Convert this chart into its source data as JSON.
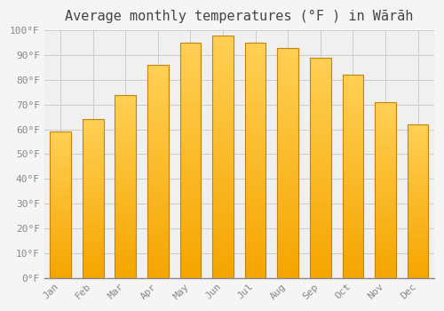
{
  "title": "Average monthly temperatures (°F ) in Wārāh",
  "months": [
    "Jan",
    "Feb",
    "Mar",
    "Apr",
    "May",
    "Jun",
    "Jul",
    "Aug",
    "Sep",
    "Oct",
    "Nov",
    "Dec"
  ],
  "values": [
    59,
    64,
    74,
    86,
    95,
    98,
    95,
    93,
    89,
    82,
    71,
    62
  ],
  "bar_color_top": "#FFC84A",
  "bar_color_bottom": "#F5A500",
  "bar_edge_color": "#C8820A",
  "background_color": "#f5f5f5",
  "plot_bg_color": "#f0f0f0",
  "grid_color": "#cccccc",
  "ylim": [
    0,
    100
  ],
  "ytick_step": 10,
  "title_fontsize": 11,
  "tick_fontsize": 8,
  "tick_label_color": "#888888",
  "title_color": "#444444",
  "bar_width": 0.65
}
